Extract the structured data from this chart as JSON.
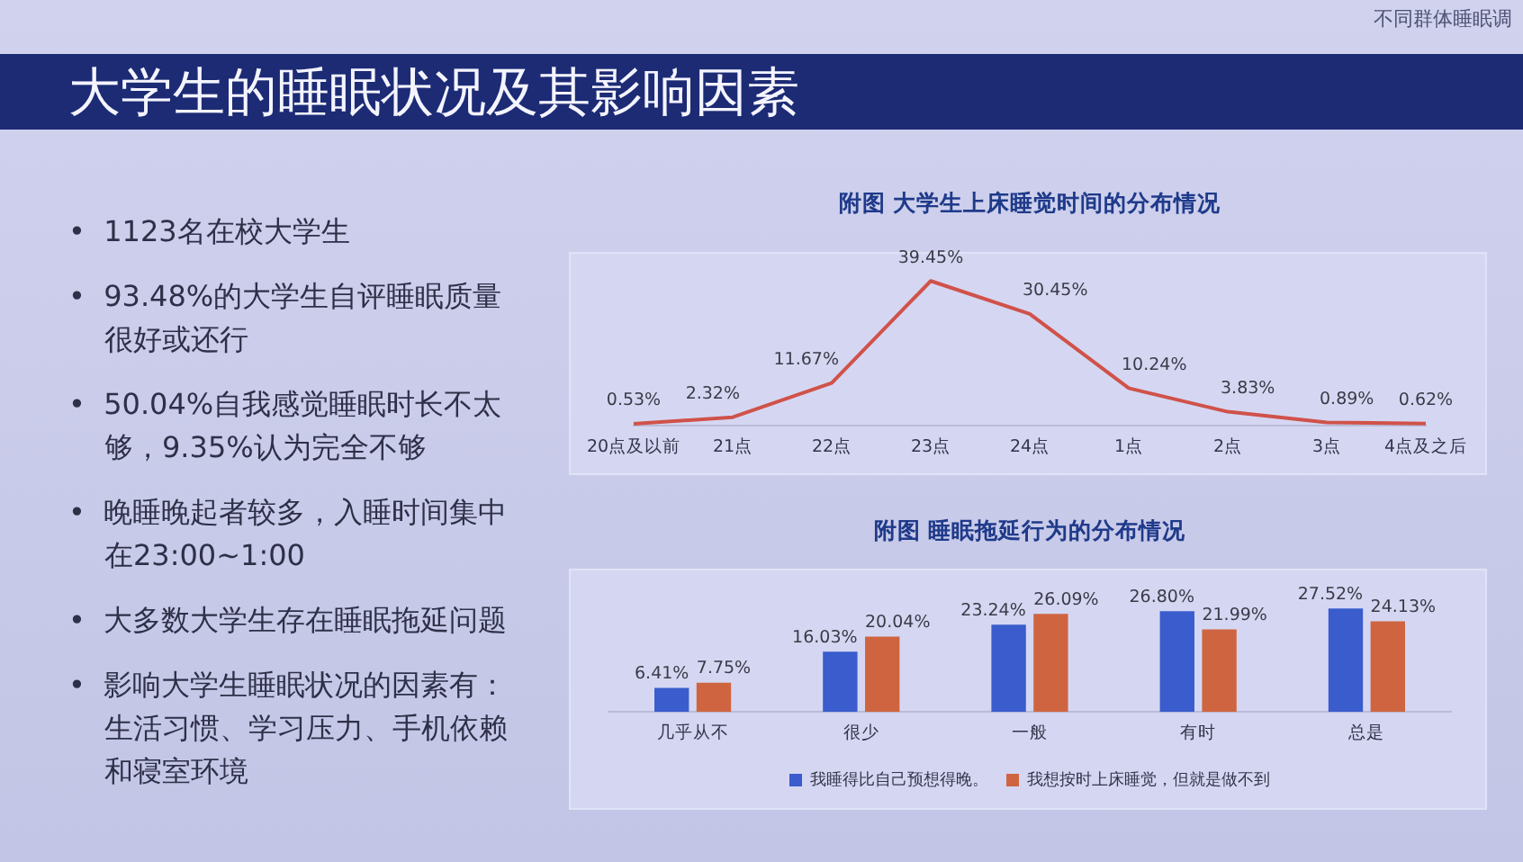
{
  "chart_data": [
    {
      "type": "other",
      "title": "大学生的睡眠状况及其影响因素",
      "subtitle": "不同群体睡眠调",
      "annotations": [
        "•  1123名在校大学生",
        "•  93.48%的大学生自评睡眠质量很好或还行",
        "•  50.04%自我感觉睡眠时长不太够，9.35%认为完全不够",
        "•  晚睡晚起者较多，入睡时间集中在23:00~1:00",
        "•  大多数大学生存在睡眠拖延问题",
        "•  影响大学生睡眠状况的因素有：生活习惯、学习压力、手机依赖和寝室环境"
      ]
    },
    {
      "type": "line",
      "title": "附图 大学生上床睡觉时间的分布情况",
      "categories": [
        "20点及以前",
        "21点",
        "22点",
        "23点",
        "24点",
        "1点",
        "2点",
        "3点",
        "4点及之后"
      ],
      "values": [
        0.53,
        2.32,
        11.67,
        39.45,
        30.45,
        10.24,
        3.83,
        0.89,
        0.62
      ],
      "value_labels": [
        "0.53%",
        "2.32%",
        "11.67%",
        "39.45%",
        "30.45%",
        "10.24%",
        "3.83%",
        "0.89%",
        "0.62%"
      ],
      "color": "#d0524a",
      "marker": "none"
    },
    {
      "type": "bar",
      "title": "附图 睡眠拖延行为的分布情况",
      "categories": [
        "几乎从不",
        "很少",
        "一般",
        "有时",
        "总是"
      ],
      "series": [
        {
          "name": "我睡得比自己预想得晚。",
          "color": "#3a5ccc",
          "values": [
            6.41,
            16.03,
            23.24,
            26.8,
            27.52
          ],
          "value_labels": [
            "6.41%",
            "16.03%",
            "23.24%",
            "26.80%",
            "27.52%"
          ]
        },
        {
          "name": "我想按时上床睡觉，但就是做不到",
          "color": "#cf6540",
          "values": [
            7.75,
            20.04,
            26.09,
            21.99,
            24.13
          ],
          "value_labels": [
            "7.75%",
            "20.04%",
            "26.09%",
            "21.99%",
            "24.13%"
          ]
        }
      ],
      "legend": "bottom"
    }
  ]
}
